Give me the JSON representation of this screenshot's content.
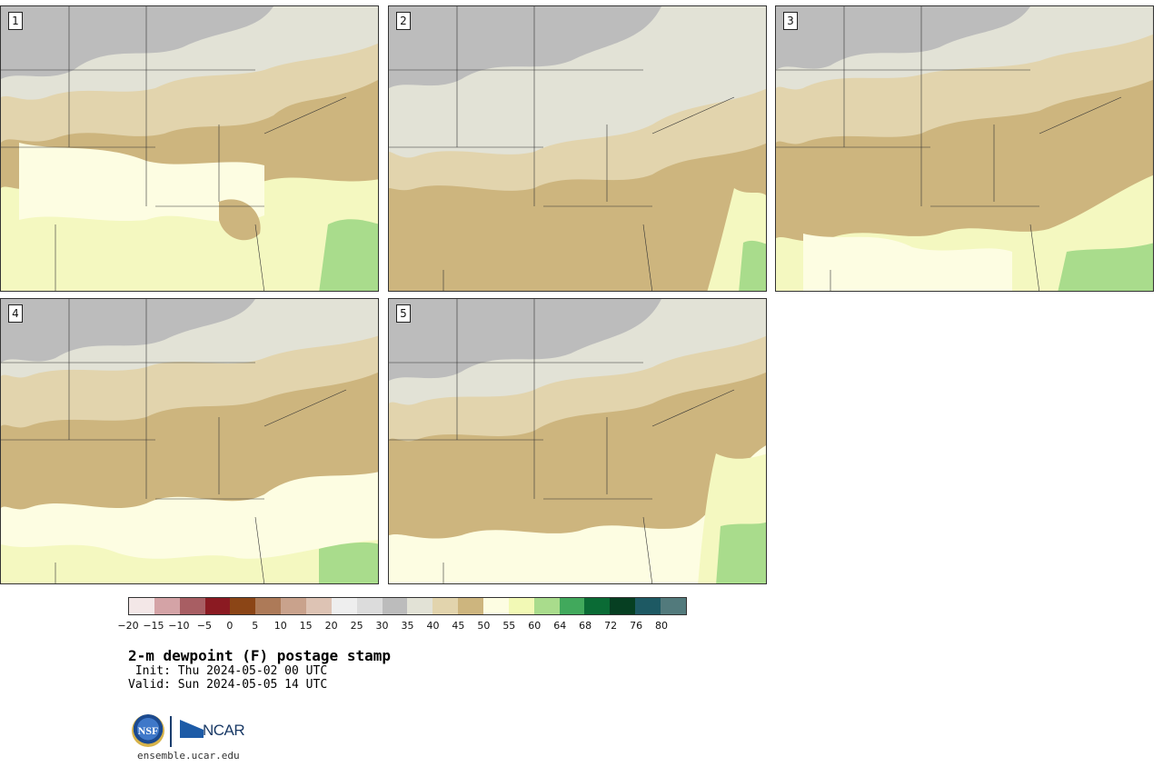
{
  "panels": [
    {
      "label": "1"
    },
    {
      "label": "2"
    },
    {
      "label": "3"
    },
    {
      "label": "4"
    },
    {
      "label": "5"
    }
  ],
  "colorbar": {
    "ticks": [
      "−20",
      "−15",
      "−10",
      "−5",
      "0",
      "5",
      "10",
      "15",
      "20",
      "25",
      "30",
      "35",
      "40",
      "45",
      "50",
      "55",
      "60",
      "64",
      "68",
      "72",
      "76",
      "80"
    ],
    "colors": [
      "#f3e7e7",
      "#d4a3a6",
      "#a85e63",
      "#8b1a22",
      "#8b4516",
      "#ad7a58",
      "#c9a28c",
      "#ddc3b4",
      "#eeeeee",
      "#dcdcdc",
      "#bcbcbc",
      "#e2e2d6",
      "#e2d4ad",
      "#cdb57e",
      "#fdfde2",
      "#f2f9b5",
      "#a9dc8c",
      "#41a95c",
      "#0a6b35",
      "#063f22",
      "#1d5963",
      "#527a7c"
    ]
  },
  "title": "2-m dewpoint (F) postage stamp",
  "init_line": " Init: Thu 2024-05-02 00 UTC",
  "valid_line": "Valid: Sun 2024-05-05 14 UTC",
  "logos": {
    "nsf": "NSF",
    "ncar": "NCAR"
  },
  "site": "ensemble.ucar.edu"
}
